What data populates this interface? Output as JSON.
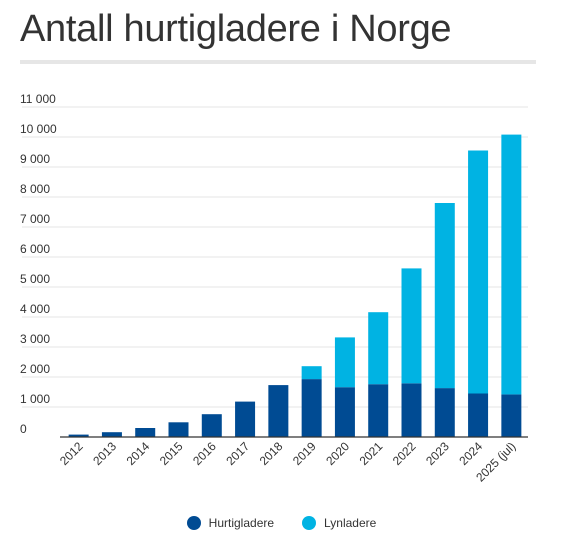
{
  "chart_data": {
    "type": "bar",
    "stacked": true,
    "title": "Antall hurtigladere i Norge",
    "categories": [
      "2012",
      "2013",
      "2014",
      "2015",
      "2016",
      "2017",
      "2018",
      "2019",
      "2020",
      "2021",
      "2022",
      "2023",
      "2024",
      "2025 (jul)"
    ],
    "series": [
      {
        "name": "Hurtigladere",
        "color": "#004b93",
        "values": [
          80,
          160,
          300,
          490,
          760,
          1180,
          1730,
          1930,
          1660,
          1760,
          1790,
          1630,
          1450,
          1420
        ]
      },
      {
        "name": "Lynladere",
        "color": "#00b3e3",
        "values": [
          0,
          0,
          0,
          0,
          0,
          0,
          0,
          430,
          1660,
          2400,
          3830,
          6170,
          8100,
          8660
        ]
      }
    ],
    "ylim": [
      0,
      11000
    ],
    "yticks": [
      0,
      1000,
      2000,
      3000,
      4000,
      5000,
      6000,
      7000,
      8000,
      9000,
      10000,
      11000
    ],
    "ytick_labels": [
      "0",
      "1 000",
      "2 000",
      "3 000",
      "4 000",
      "5 000",
      "6 000",
      "7 000",
      "8 000",
      "9 000",
      "10 000",
      "11 000"
    ],
    "xlabel": "",
    "ylabel": "",
    "grid": true,
    "legend_position": "bottom"
  }
}
